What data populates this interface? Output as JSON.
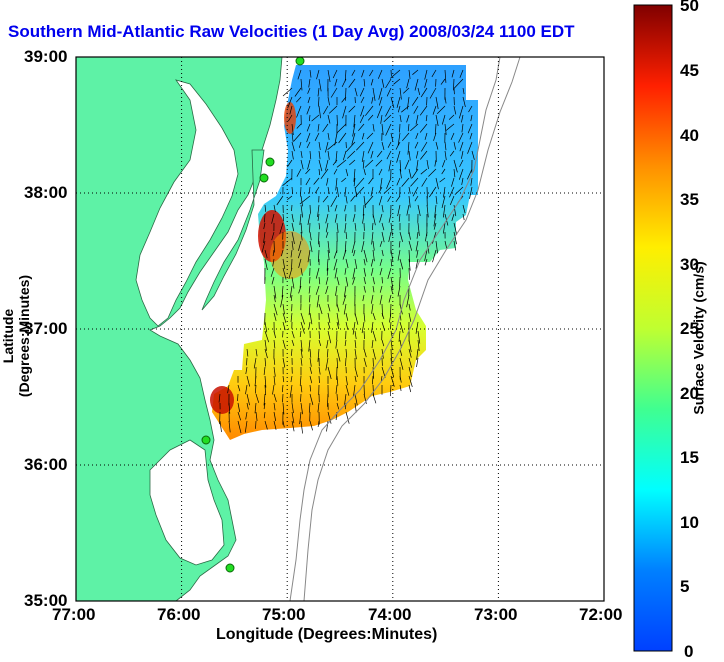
{
  "title": "Southern Mid-Atlantic Raw Velocities (1 Day Avg) 2008/03/24 1100 EDT",
  "x_axis": {
    "label": "Longitude (Degrees:Minutes)",
    "ticks": [
      "77:00",
      "76:00",
      "75:00",
      "74:00",
      "73:00",
      "72:00"
    ]
  },
  "y_axis": {
    "label": "Latitude (Degrees:Minutes)",
    "ticks": [
      "39:00",
      "38:00",
      "37:00",
      "36:00",
      "35:00"
    ]
  },
  "colorbar": {
    "label": "Surface Velocity (cm/s)",
    "ticks": [
      "50",
      "45",
      "40",
      "35",
      "30",
      "25",
      "20",
      "15",
      "10",
      "5",
      "0"
    ],
    "min": 0,
    "max": 50,
    "colormap": "jet"
  },
  "colors": {
    "land": "#5ef2a6",
    "water": "#ffffff",
    "title": "#0000ee",
    "station": "#22dd22"
  },
  "map": {
    "lon_range": [
      -77,
      -72
    ],
    "lat_range": [
      35,
      39
    ],
    "grid": "dotted",
    "stations": 5
  }
}
